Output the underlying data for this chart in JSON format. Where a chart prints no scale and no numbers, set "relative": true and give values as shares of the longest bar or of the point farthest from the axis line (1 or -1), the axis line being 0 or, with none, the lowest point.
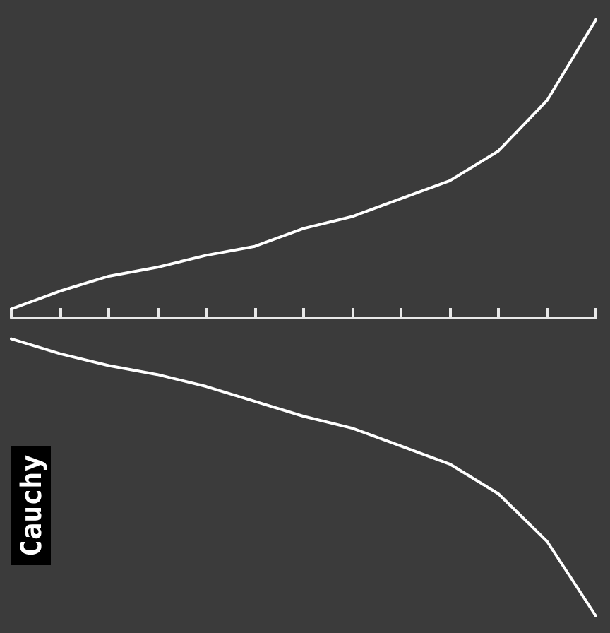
{
  "chart_data": {
    "type": "line",
    "title": "Cauchy",
    "relative": true,
    "grid": false,
    "marker": "none",
    "line_style": "solid",
    "categories": [
      null,
      null,
      null,
      null,
      null,
      null,
      null,
      null,
      null,
      null,
      null,
      null,
      null
    ],
    "series": [
      {
        "color": "#ffffff",
        "values": [
          0.03,
          0.09,
          0.14,
          0.17,
          0.21,
          0.24,
          0.3,
          0.34,
          0.4,
          0.46,
          0.56,
          0.73,
          1.0
        ]
      },
      {
        "color": "#ffffff",
        "values": [
          -0.07,
          -0.12,
          -0.16,
          -0.19,
          -0.23,
          -0.28,
          -0.33,
          -0.37,
          -0.43,
          -0.49,
          -0.59,
          -0.75,
          -1.0
        ]
      }
    ]
  }
}
